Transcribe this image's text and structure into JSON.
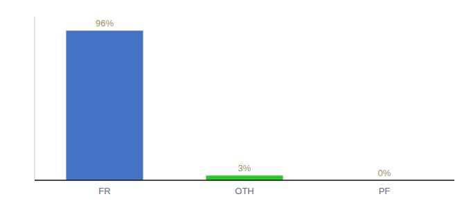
{
  "chart_data": {
    "type": "bar",
    "categories": [
      "FR",
      "OTH",
      "PF"
    ],
    "values": [
      96,
      3,
      0
    ],
    "value_labels": [
      "96%",
      "3%",
      "0%"
    ],
    "colors": [
      "#4472c4",
      "#22cc22",
      "#4472c4"
    ],
    "ylim": [
      0,
      105
    ],
    "yticks": [],
    "data_labels": true,
    "tick_labels": "x",
    "grid": false
  }
}
